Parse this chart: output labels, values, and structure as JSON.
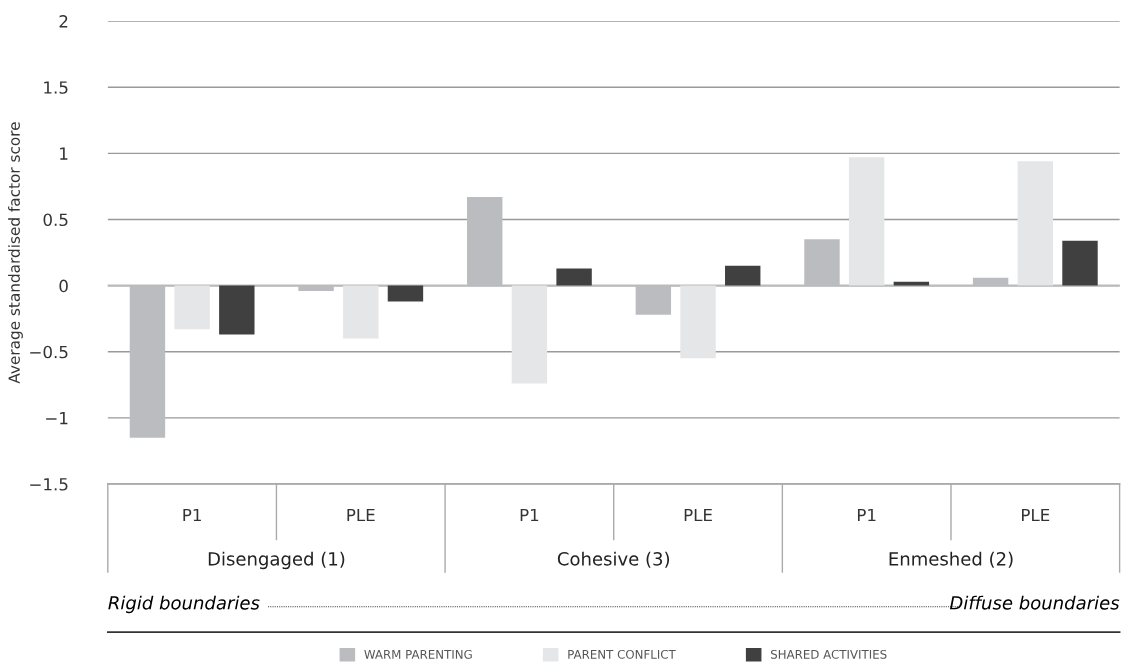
{
  "chart_data": {
    "type": "bar",
    "ylabel": "Average standardised factor score",
    "categories": [
      "P1",
      "PLE",
      "P1",
      "PLE",
      "P1",
      "PLE"
    ],
    "series": [
      {
        "name": "WARM PARENTING",
        "color": "#bbbcbf",
        "values": [
          -1.15,
          -0.04,
          0.67,
          -0.22,
          0.35,
          0.06
        ]
      },
      {
        "name": "PARENT CONFLICT",
        "color": "#e5e6e8",
        "values": [
          -0.33,
          -0.4,
          -0.74,
          -0.55,
          0.97,
          0.94
        ]
      },
      {
        "name": "SHARED ACTIVITIES",
        "color": "#404040",
        "values": [
          -0.37,
          -0.12,
          0.13,
          0.15,
          0.03,
          0.34
        ]
      }
    ],
    "ylim": [
      -1.5,
      2
    ],
    "yticks": [
      {
        "value": -1.5,
        "label": "−1.5"
      },
      {
        "value": -1,
        "label": "−1"
      },
      {
        "value": -0.5,
        "label": "−0.5"
      },
      0,
      0.5,
      1,
      1.5,
      2
    ],
    "grid": "y",
    "legend": "bottom",
    "annotations": [
      "Disengaged (1)",
      "Cohesive (3)",
      "Enmeshed (2)",
      "Rigid boundaries",
      "Diffuse boundaries"
    ]
  }
}
